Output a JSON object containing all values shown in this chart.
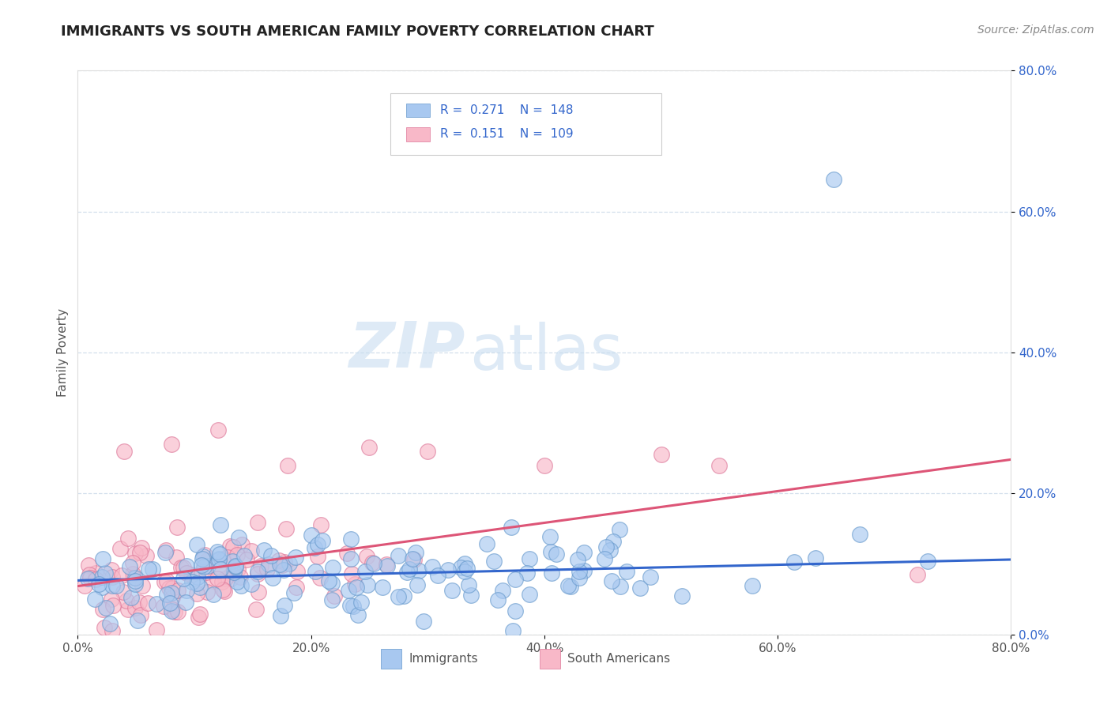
{
  "title": "IMMIGRANTS VS SOUTH AMERICAN FAMILY POVERTY CORRELATION CHART",
  "source_text": "Source: ZipAtlas.com",
  "ylabel": "Family Poverty",
  "watermark_zip": "ZIP",
  "watermark_atlas": "atlas",
  "xlim": [
    0.0,
    0.8
  ],
  "ylim": [
    0.0,
    0.8
  ],
  "xtick_labels": [
    "0.0%",
    "20.0%",
    "40.0%",
    "60.0%",
    "80.0%"
  ],
  "ytick_labels": [
    "0.0%",
    "20.0%",
    "40.0%",
    "60.0%",
    "80.0%"
  ],
  "xtick_positions": [
    0.0,
    0.2,
    0.4,
    0.6,
    0.8
  ],
  "ytick_positions": [
    0.0,
    0.2,
    0.4,
    0.6,
    0.8
  ],
  "series": [
    {
      "name": "Immigrants",
      "color": "#a8c8f0",
      "edge_color": "#6699cc",
      "R": 0.271,
      "N": 148,
      "trend_color": "#3366cc"
    },
    {
      "name": "South Americans",
      "color": "#f8b8c8",
      "edge_color": "#dd7799",
      "R": 0.151,
      "N": 109,
      "trend_color": "#dd5577"
    }
  ],
  "legend_text_color": "#3366cc",
  "title_fontsize": 13,
  "axis_label_fontsize": 11,
  "tick_fontsize": 11,
  "source_fontsize": 10,
  "watermark_fontsize_zip": 58,
  "watermark_fontsize_atlas": 58,
  "watermark_color_zip": "#c8ddf0",
  "watermark_color_atlas": "#c8ddf0",
  "watermark_alpha": 0.6,
  "background_color": "#ffffff",
  "grid_color": "#c8d8e8",
  "grid_linestyle": "--",
  "grid_alpha": 0.8
}
